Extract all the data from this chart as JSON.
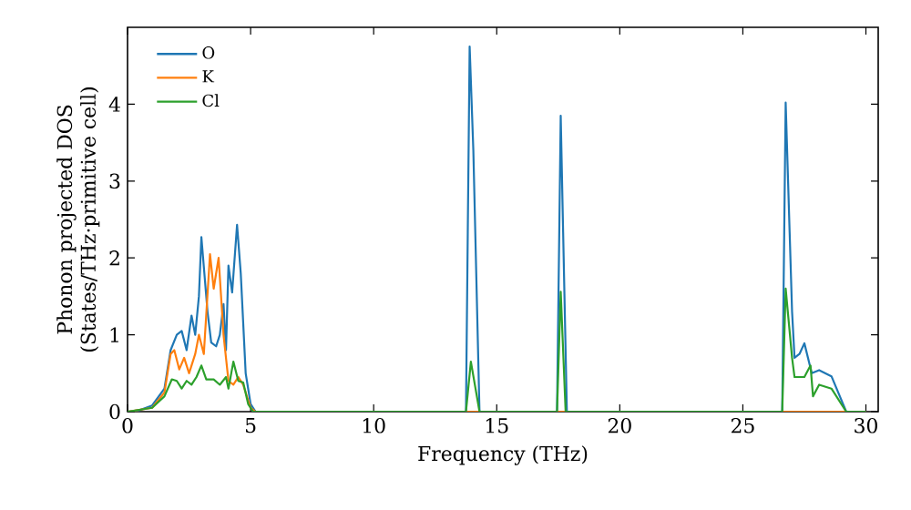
{
  "chart_data": {
    "type": "line",
    "xlabel": "Frequency (THz)",
    "ylabel": "Phonon projected DOS\n(States/THz·primitive cell)",
    "xlim": [
      0,
      30.5
    ],
    "ylim": [
      0,
      5
    ],
    "xticks": [
      0,
      5,
      10,
      15,
      20,
      25,
      30
    ],
    "yticks": [
      0,
      1,
      2,
      3,
      4
    ],
    "legend": "top left",
    "marker": "none",
    "line_style": "solid",
    "series": [
      {
        "name": "O",
        "color": "#1f77b4",
        "x": [
          0,
          0.5,
          1,
          1.5,
          1.75,
          2.0,
          2.2,
          2.4,
          2.6,
          2.75,
          2.9,
          3.0,
          3.25,
          3.4,
          3.6,
          3.75,
          3.9,
          4.0,
          4.1,
          4.25,
          4.45,
          4.6,
          4.8,
          5.0,
          5.2,
          13.75,
          13.9,
          14.05,
          14.3,
          17.45,
          17.6,
          17.85,
          26.6,
          26.74,
          27.0,
          27.1,
          27.3,
          27.5,
          27.8,
          28.1,
          28.6,
          29.2,
          30
        ],
        "values": [
          0,
          0.02,
          0.08,
          0.3,
          0.8,
          1.0,
          1.05,
          0.8,
          1.25,
          1.0,
          1.5,
          2.27,
          1.3,
          0.9,
          0.85,
          1.0,
          1.4,
          0.8,
          1.9,
          1.55,
          2.43,
          1.8,
          0.5,
          0.1,
          0,
          0,
          4.75,
          3.4,
          0,
          0,
          3.85,
          0,
          0,
          4.02,
          1.3,
          0.7,
          0.75,
          0.89,
          0.5,
          0.54,
          0.46,
          0,
          0
        ]
      },
      {
        "name": "K",
        "color": "#ff7f0e",
        "x": [
          0,
          1,
          1.5,
          1.75,
          1.9,
          2.1,
          2.3,
          2.5,
          2.75,
          2.9,
          3.1,
          3.35,
          3.5,
          3.7,
          3.9,
          4.1,
          4.3,
          4.5,
          4.7,
          5.0,
          5.2,
          30
        ],
        "values": [
          0,
          0.05,
          0.25,
          0.75,
          0.8,
          0.55,
          0.7,
          0.5,
          0.75,
          1.0,
          0.75,
          2.05,
          1.6,
          2.0,
          1.0,
          0.4,
          0.35,
          0.45,
          0.35,
          0.05,
          0,
          0
        ]
      },
      {
        "name": "Cl",
        "color": "#2ca02c",
        "x": [
          0,
          1,
          1.5,
          1.8,
          2.0,
          2.2,
          2.4,
          2.6,
          2.8,
          3.0,
          3.2,
          3.5,
          3.75,
          4.0,
          4.1,
          4.3,
          4.5,
          4.7,
          4.9,
          5.1,
          13.75,
          13.95,
          14.3,
          17.45,
          17.6,
          17.8,
          26.6,
          26.74,
          27.0,
          27.1,
          27.5,
          27.75,
          27.85,
          28.1,
          28.6,
          29.2,
          30
        ],
        "values": [
          0,
          0.05,
          0.2,
          0.42,
          0.4,
          0.3,
          0.4,
          0.35,
          0.45,
          0.6,
          0.42,
          0.42,
          0.35,
          0.45,
          0.3,
          0.65,
          0.4,
          0.38,
          0.1,
          0,
          0,
          0.65,
          0,
          0,
          1.56,
          0,
          0,
          1.6,
          0.7,
          0.45,
          0.45,
          0.6,
          0.2,
          0.35,
          0.3,
          0,
          0
        ]
      }
    ]
  }
}
